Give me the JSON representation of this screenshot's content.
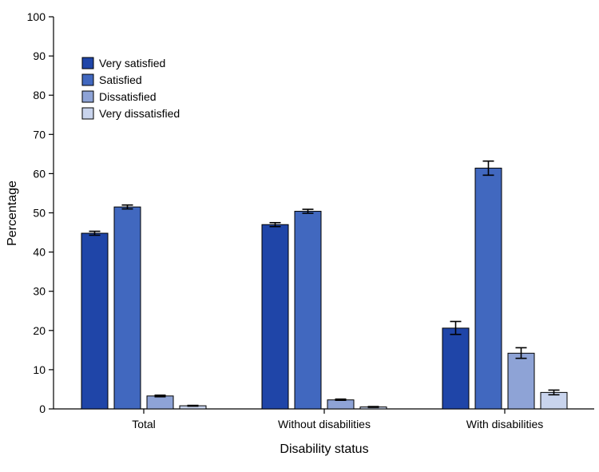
{
  "chart_data": {
    "type": "bar",
    "title": "",
    "xlabel": "Disability status",
    "ylabel": "Percentage",
    "ylim": [
      0,
      100
    ],
    "yticks": [
      0,
      10,
      20,
      30,
      40,
      50,
      60,
      70,
      80,
      90,
      100
    ],
    "categories": [
      "Total",
      "Without disabilities",
      "With disabilities"
    ],
    "legend_position": "top-left",
    "series": [
      {
        "name": "Very satisfied",
        "color": "#1f45a8",
        "values": [
          44.8,
          47.0,
          20.6
        ],
        "ci_low": [
          44.3,
          46.5,
          19.0
        ],
        "ci_high": [
          45.3,
          47.5,
          22.3
        ]
      },
      {
        "name": "Satisfied",
        "color": "#4168bf",
        "values": [
          51.5,
          50.4,
          61.4
        ],
        "ci_low": [
          51.0,
          49.9,
          59.6
        ],
        "ci_high": [
          52.0,
          50.9,
          63.2
        ]
      },
      {
        "name": "Dissatisfied",
        "color": "#8ea3d6",
        "values": [
          3.3,
          2.3,
          14.2
        ],
        "ci_low": [
          3.1,
          2.2,
          12.9
        ],
        "ci_high": [
          3.5,
          2.5,
          15.6
        ]
      },
      {
        "name": "Very dissatisfied",
        "color": "#c9d4ed",
        "values": [
          0.8,
          0.5,
          4.2
        ],
        "ci_low": [
          0.7,
          0.4,
          3.6
        ],
        "ci_high": [
          0.9,
          0.6,
          4.8
        ]
      }
    ]
  }
}
